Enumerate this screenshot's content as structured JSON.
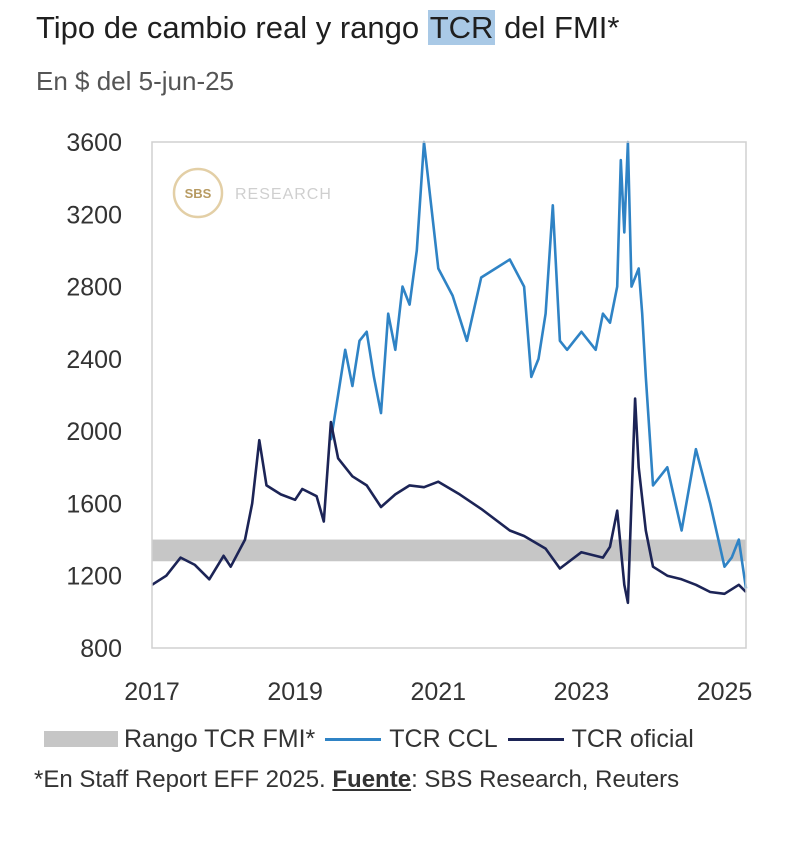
{
  "header": {
    "title_before": "Tipo de cambio real y rango ",
    "title_highlight": "TCR",
    "title_after": " del FMI*",
    "subtitle": "En $ del 5-jun-25"
  },
  "watermark": {
    "logo_text": "SBS",
    "text": "RESEARCH"
  },
  "legend": {
    "band_label": "Rango TCR FMI*",
    "ccl_label": "TCR CCL",
    "oficial_label": "TCR oficial"
  },
  "footnote": {
    "prefix": "*En Staff Report EFF 2025. ",
    "source_label": "Fuente",
    "suffix": ": SBS Research,  Reuters"
  },
  "colors": {
    "ccl": "#2f83c5",
    "oficial": "#1c2456",
    "band": "#c6c6c6",
    "highlight": "#a9c9e6"
  },
  "chart_data": {
    "type": "line",
    "title": "Tipo de cambio real y rango TCR del FMI*",
    "subtitle": "En $ del 5-jun-25",
    "xlabel": "",
    "ylabel": "",
    "xlim": [
      2017.0,
      2025.3
    ],
    "ylim": [
      800,
      3600
    ],
    "x_ticks": [
      "2017",
      "2019",
      "2021",
      "2023",
      "2025"
    ],
    "y_ticks": [
      "800",
      "1200",
      "1600",
      "2000",
      "2400",
      "2800",
      "3200",
      "3600"
    ],
    "band": {
      "name": "Rango TCR FMI*",
      "low": 1280,
      "high": 1400
    },
    "series": [
      {
        "name": "TCR oficial",
        "x": [
          2017.0,
          2017.2,
          2017.4,
          2017.6,
          2017.8,
          2018.0,
          2018.1,
          2018.3,
          2018.4,
          2018.5,
          2018.6,
          2018.8,
          2019.0,
          2019.1,
          2019.3,
          2019.4,
          2019.5,
          2019.6,
          2019.8,
          2020.0,
          2020.2,
          2020.4,
          2020.6,
          2020.8,
          2021.0,
          2021.3,
          2021.6,
          2022.0,
          2022.2,
          2022.5,
          2022.7,
          2023.0,
          2023.3,
          2023.4,
          2023.5,
          2023.6,
          2023.65,
          2023.75,
          2023.8,
          2023.9,
          2024.0,
          2024.2,
          2024.4,
          2024.6,
          2024.8,
          2025.0,
          2025.2,
          2025.3
        ],
        "values": [
          1150,
          1200,
          1300,
          1260,
          1180,
          1310,
          1250,
          1400,
          1600,
          1950,
          1700,
          1650,
          1620,
          1680,
          1640,
          1500,
          2050,
          1850,
          1750,
          1700,
          1580,
          1650,
          1700,
          1690,
          1720,
          1650,
          1570,
          1450,
          1420,
          1350,
          1240,
          1330,
          1300,
          1360,
          1560,
          1150,
          1050,
          2180,
          1800,
          1450,
          1250,
          1200,
          1180,
          1150,
          1110,
          1100,
          1150,
          1110
        ]
      },
      {
        "name": "TCR CCL",
        "x": [
          2019.5,
          2019.6,
          2019.7,
          2019.8,
          2019.9,
          2020.0,
          2020.1,
          2020.2,
          2020.3,
          2020.4,
          2020.5,
          2020.6,
          2020.7,
          2020.8,
          2021.0,
          2021.2,
          2021.4,
          2021.6,
          2021.8,
          2022.0,
          2022.2,
          2022.3,
          2022.4,
          2022.5,
          2022.6,
          2022.7,
          2022.8,
          2022.9,
          2023.0,
          2023.2,
          2023.3,
          2023.4,
          2023.5,
          2023.55,
          2023.6,
          2023.65,
          2023.7,
          2023.8,
          2023.85,
          2023.9,
          2024.0,
          2024.2,
          2024.4,
          2024.6,
          2024.8,
          2025.0,
          2025.1,
          2025.2,
          2025.3
        ],
        "values": [
          1950,
          2200,
          2450,
          2250,
          2500,
          2550,
          2300,
          2100,
          2650,
          2450,
          2800,
          2700,
          3000,
          3600,
          2900,
          2750,
          2500,
          2850,
          2900,
          2950,
          2800,
          2300,
          2400,
          2650,
          3250,
          2500,
          2450,
          2500,
          2550,
          2450,
          2650,
          2600,
          2800,
          3500,
          3100,
          3600,
          2800,
          2900,
          2650,
          2300,
          1700,
          1800,
          1450,
          1900,
          1600,
          1250,
          1300,
          1400,
          1130
        ]
      }
    ],
    "watermark_text": "SBS RESEARCH"
  }
}
